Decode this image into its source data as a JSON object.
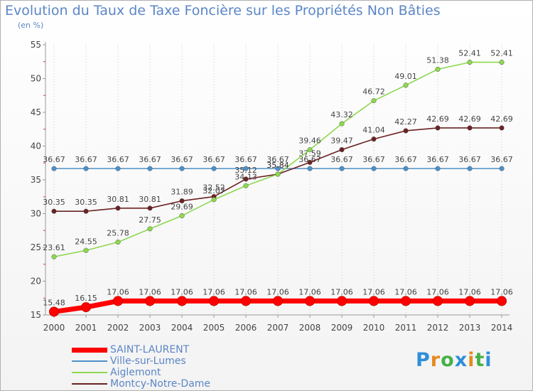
{
  "title": "Evolution du Taux de Taxe Foncière sur les Propriétés Non Bâties",
  "unit": "(en %)",
  "logo_text": "Proxiti",
  "chart_data": {
    "type": "line",
    "ylim": [
      15,
      55
    ],
    "yticks": [
      15,
      20,
      25,
      30,
      35,
      40,
      45,
      50,
      55
    ],
    "x": [
      "2000",
      "2001",
      "2002",
      "2003",
      "2004",
      "2005",
      "2006",
      "2007",
      "2008",
      "2009",
      "2010",
      "2011",
      "2012",
      "2013",
      "2014"
    ],
    "grid": "vertical dotted",
    "series": [
      {
        "name": "SAINT-LAURENT",
        "color": "#ff0000",
        "values": [
          15.48,
          16.15,
          17.06,
          17.06,
          17.06,
          17.06,
          17.06,
          17.06,
          17.06,
          17.06,
          17.06,
          17.06,
          17.06,
          17.06,
          17.06
        ],
        "labels": [
          "15.48",
          "16.15",
          "17.06",
          "17.06",
          "17.06",
          "17.06",
          "17.06",
          "17.06",
          "17.06",
          "17.06",
          "17.06",
          "17.06",
          "17.06",
          "17.06",
          "17.06"
        ]
      },
      {
        "name": "Ville-sur-Lumes",
        "color": "#4f90c8",
        "values": [
          36.67,
          36.67,
          36.67,
          36.67,
          36.67,
          36.67,
          36.67,
          36.67,
          36.67,
          36.67,
          36.67,
          36.67,
          36.67,
          36.67,
          36.67
        ],
        "labels": [
          "36.67",
          "36.67",
          "36.67",
          "36.67",
          "36.67",
          "36.67",
          "36.67",
          "36.67",
          "36.67",
          "36.67",
          "36.67",
          "36.67",
          "36.67",
          "36.67",
          "36.67"
        ]
      },
      {
        "name": "Aiglemont",
        "color": "#8ed84f",
        "values": [
          23.61,
          24.55,
          25.78,
          27.75,
          29.69,
          32.07,
          34.13,
          35.84,
          39.46,
          43.32,
          46.72,
          49.01,
          51.38,
          52.41,
          52.41
        ],
        "labels": [
          "23.61",
          "24.55",
          "25.78",
          "27.75",
          "29.69",
          "32.07",
          "34.13",
          "35.84",
          "39.46",
          "43.32",
          "46.72",
          "49.01",
          "51.38",
          "52.41",
          "52.41"
        ]
      },
      {
        "name": "Montcy-Notre-Dame",
        "color": "#6b2222",
        "values": [
          30.35,
          30.35,
          30.81,
          30.81,
          31.89,
          32.52,
          35.12,
          35.84,
          37.59,
          39.47,
          41.04,
          42.27,
          42.69,
          42.69,
          42.69
        ],
        "labels": [
          "30.35",
          "30.35",
          "30.81",
          "30.81",
          "31.89",
          "32.52",
          "35.12",
          "35.84",
          "37.59",
          "39.47",
          "41.04",
          "42.27",
          "42.69",
          "42.69",
          "42.69"
        ]
      }
    ]
  }
}
